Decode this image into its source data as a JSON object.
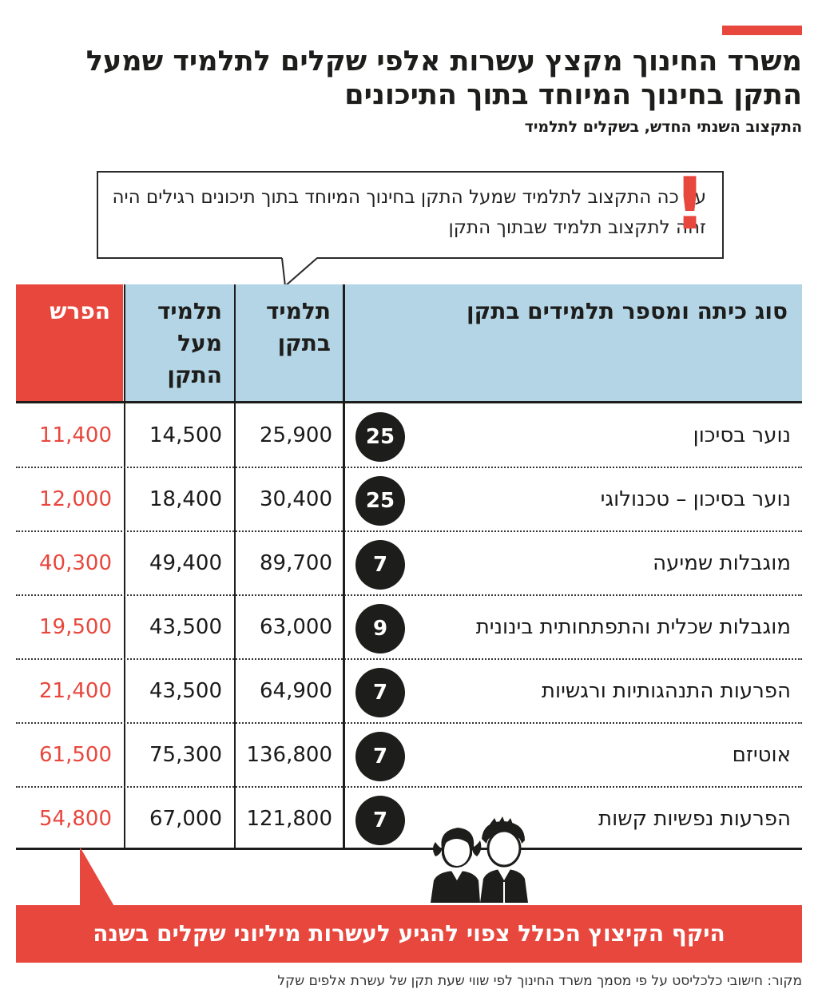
{
  "header": {
    "title": "משרד החינוך מקצץ עשרות אלפי שקלים לתלמיד שמעל התקן בחינוך המיוחד בתוך התיכונים",
    "subtitle": "התקצוב השנתי החדש, בשקלים לתלמיד"
  },
  "callout": {
    "text": "עד כה התקצוב לתלמיד שמעל התקן בחינוך המיוחד בתוך תיכונים רגילים היה זהה לתקצוב תלמיד שבתוך התקן",
    "mark": "!"
  },
  "colors": {
    "accent": "#e8473d",
    "header_bg": "#b3d5e5",
    "dark": "#1d1d1b"
  },
  "chart_data": {
    "type": "table",
    "columns": [
      "סוג כיתה ומספר תלמידים בתקן",
      "תלמיד בתקן",
      "תלמיד מעל התקן",
      "הפרש"
    ],
    "rows": [
      {
        "category": "נוער בסיכון",
        "class_size": "25",
        "in_standard": "25,900",
        "above_standard": "14,500",
        "difference": "11,400"
      },
      {
        "category": "נוער בסיכון – טכנולוגי",
        "class_size": "25",
        "in_standard": "30,400",
        "above_standard": "18,400",
        "difference": "12,000"
      },
      {
        "category": "מוגבלות שמיעה",
        "class_size": "7",
        "in_standard": "89,700",
        "above_standard": "49,400",
        "difference": "40,300"
      },
      {
        "category": "מוגבלות שכלית והתפתחותית בינונית",
        "class_size": "9",
        "in_standard": "63,000",
        "above_standard": "43,500",
        "difference": "19,500"
      },
      {
        "category": "הפרעות התנהגותיות ורגשיות",
        "class_size": "7",
        "in_standard": "64,900",
        "above_standard": "43,500",
        "difference": "21,400"
      },
      {
        "category": "אוטיזם",
        "class_size": "7",
        "in_standard": "136,800",
        "above_standard": "75,300",
        "difference": "61,500"
      },
      {
        "category": "הפרעות נפשיות קשות",
        "class_size": "7",
        "in_standard": "121,800",
        "above_standard": "67,000",
        "difference": "54,800"
      }
    ]
  },
  "table_head": {
    "category": "סוג כיתה ומספר תלמידים בתקן",
    "in_standard": "תלמיד בתקן",
    "above_standard": "תלמיד מעל התקן",
    "difference": "הפרש"
  },
  "banner": {
    "text": "היקף הקיצוץ הכולל צפוי להגיע לעשרות מיליוני שקלים בשנה"
  },
  "footer": {
    "source": "מקור: חישובי כלכליסט על פי מסמך משרד החינוך לפי שווי שעת תקן של עשרת אלפים שקל"
  },
  "icons": {
    "students": "students-icon"
  }
}
